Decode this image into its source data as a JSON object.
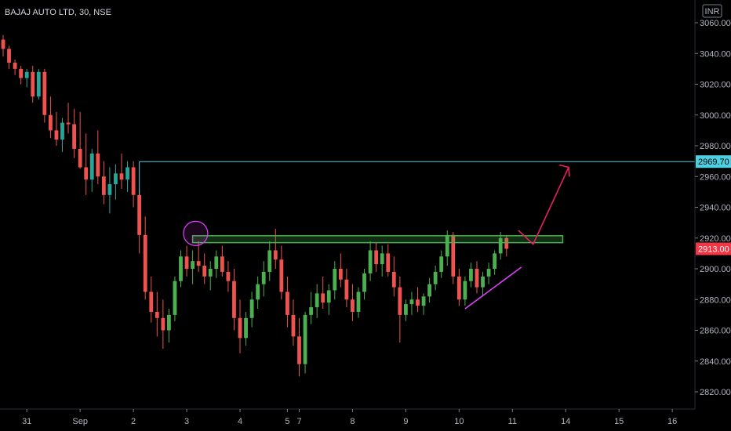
{
  "chart_data": {
    "type": "candlestick",
    "title": "BAJAJ AUTO LTD, 30, NSE",
    "currency": "INR",
    "ylim": [
      2810,
      3070
    ],
    "yticks": [
      "3060.00",
      "3040.00",
      "3020.00",
      "3000.00",
      "2980.00",
      "2960.00",
      "2940.00",
      "2920.00",
      "2900.00",
      "2880.00",
      "2860.00",
      "2840.00",
      "2820.00"
    ],
    "xticks": [
      {
        "label": "31",
        "bar": 4
      },
      {
        "label": "Sep",
        "bar": 13
      },
      {
        "label": "2",
        "bar": 22
      },
      {
        "label": "3",
        "bar": 31
      },
      {
        "label": "4",
        "bar": 40
      },
      {
        "label": "5",
        "bar": 48
      },
      {
        "label": "7",
        "bar": 50
      },
      {
        "label": "8",
        "bar": 59
      },
      {
        "label": "9",
        "bar": 68
      },
      {
        "label": "10",
        "bar": 77
      },
      {
        "label": "11",
        "bar": 86
      },
      {
        "label": "14",
        "bar": 95
      },
      {
        "label": "15",
        "bar": 104
      },
      {
        "label": "16",
        "bar": 113
      }
    ],
    "last_price": "2913.00",
    "level_price": "2969.70",
    "colors": {
      "up": "#26a69a",
      "down": "#ef5350",
      "up_bright": "#4caf50",
      "level": "#4dd0e1",
      "zone": "#4caf50",
      "arrow": "#e91e63",
      "trendline": "#e040fb",
      "circle": "#e040fb",
      "last_badge": "#f23645"
    },
    "candles": [
      [
        3049,
        3052,
        3038,
        3043
      ],
      [
        3043,
        3045,
        3030,
        3034
      ],
      [
        3034,
        3036,
        3026,
        3030
      ],
      [
        3030,
        3032,
        3020,
        3024
      ],
      [
        3024,
        3030,
        3018,
        3028
      ],
      [
        3028,
        3032,
        3008,
        3012
      ],
      [
        3012,
        3030,
        3010,
        3028
      ],
      [
        3028,
        3030,
        2995,
        3000
      ],
      [
        3000,
        3012,
        2985,
        2990
      ],
      [
        2990,
        3002,
        2980,
        2984
      ],
      [
        2984,
        2998,
        2976,
        2995
      ],
      [
        2995,
        3008,
        2988,
        2994
      ],
      [
        2994,
        3004,
        2972,
        2978
      ],
      [
        2978,
        3002,
        2965,
        2966
      ],
      [
        2966,
        2988,
        2948,
        2958
      ],
      [
        2958,
        2978,
        2950,
        2975
      ],
      [
        2975,
        2990,
        2955,
        2960
      ],
      [
        2960,
        2970,
        2942,
        2948
      ],
      [
        2948,
        2966,
        2936,
        2955
      ],
      [
        2955,
        2968,
        2945,
        2962
      ],
      [
        2962,
        2975,
        2952,
        2958
      ],
      [
        2958,
        2970,
        2950,
        2966
      ],
      [
        2966,
        2970,
        2940,
        2948
      ],
      [
        2948,
        2952,
        2910,
        2922
      ],
      [
        2922,
        2934,
        2880,
        2885
      ],
      [
        2885,
        2895,
        2865,
        2872
      ],
      [
        2872,
        2885,
        2856,
        2868
      ],
      [
        2868,
        2880,
        2848,
        2860
      ],
      [
        2860,
        2874,
        2852,
        2870
      ],
      [
        2870,
        2895,
        2866,
        2892
      ],
      [
        2892,
        2912,
        2888,
        2908
      ],
      [
        2908,
        2915,
        2895,
        2900
      ],
      [
        2900,
        2912,
        2890,
        2905
      ],
      [
        2905,
        2918,
        2898,
        2902
      ],
      [
        2902,
        2910,
        2890,
        2895
      ],
      [
        2895,
        2905,
        2886,
        2900
      ],
      [
        2900,
        2912,
        2894,
        2908
      ],
      [
        2908,
        2915,
        2895,
        2898
      ],
      [
        2898,
        2905,
        2885,
        2892
      ],
      [
        2892,
        2900,
        2860,
        2868
      ],
      [
        2868,
        2880,
        2845,
        2855
      ],
      [
        2855,
        2872,
        2850,
        2868
      ],
      [
        2868,
        2885,
        2862,
        2880
      ],
      [
        2880,
        2895,
        2874,
        2890
      ],
      [
        2890,
        2905,
        2882,
        2898
      ],
      [
        2898,
        2918,
        2892,
        2912
      ],
      [
        2912,
        2926,
        2900,
        2906
      ],
      [
        2906,
        2915,
        2880,
        2885
      ],
      [
        2885,
        2895,
        2862,
        2870
      ],
      [
        2870,
        2880,
        2850,
        2856
      ],
      [
        2856,
        2868,
        2830,
        2838
      ],
      [
        2838,
        2872,
        2832,
        2870
      ],
      [
        2870,
        2885,
        2864,
        2875
      ],
      [
        2875,
        2890,
        2868,
        2884
      ],
      [
        2884,
        2895,
        2874,
        2878
      ],
      [
        2878,
        2890,
        2870,
        2886
      ],
      [
        2886,
        2905,
        2880,
        2900
      ],
      [
        2900,
        2910,
        2888,
        2893
      ],
      [
        2893,
        2900,
        2875,
        2880
      ],
      [
        2880,
        2890,
        2866,
        2872
      ],
      [
        2872,
        2888,
        2868,
        2885
      ],
      [
        2885,
        2900,
        2880,
        2897
      ],
      [
        2897,
        2918,
        2892,
        2912
      ],
      [
        2912,
        2917,
        2898,
        2903
      ],
      [
        2903,
        2915,
        2895,
        2910
      ],
      [
        2910,
        2916,
        2895,
        2898
      ],
      [
        2898,
        2908,
        2882,
        2888
      ],
      [
        2888,
        2895,
        2852,
        2870
      ],
      [
        2870,
        2880,
        2866,
        2877
      ],
      [
        2877,
        2885,
        2870,
        2880
      ],
      [
        2880,
        2888,
        2872,
        2876
      ],
      [
        2876,
        2884,
        2870,
        2882
      ],
      [
        2882,
        2894,
        2878,
        2890
      ],
      [
        2890,
        2902,
        2886,
        2898
      ],
      [
        2898,
        2912,
        2894,
        2908
      ],
      [
        2908,
        2925,
        2902,
        2922
      ],
      [
        2922,
        2924,
        2890,
        2895
      ],
      [
        2895,
        2900,
        2876,
        2880
      ],
      [
        2880,
        2895,
        2876,
        2892
      ],
      [
        2892,
        2904,
        2888,
        2900
      ],
      [
        2900,
        2905,
        2884,
        2888
      ],
      [
        2888,
        2898,
        2882,
        2895
      ],
      [
        2895,
        2904,
        2890,
        2900
      ],
      [
        2900,
        2912,
        2896,
        2910
      ],
      [
        2910,
        2924,
        2906,
        2920
      ],
      [
        2920,
        2922,
        2908,
        2913
      ]
    ]
  }
}
